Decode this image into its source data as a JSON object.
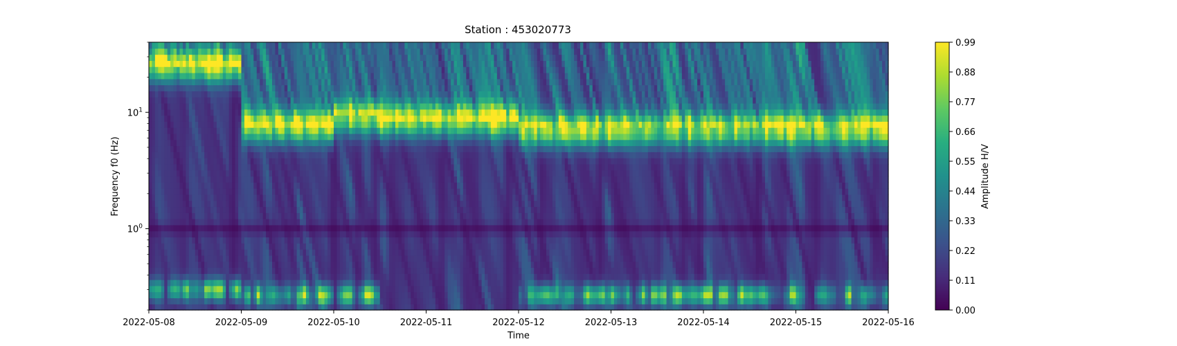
{
  "chart_data": {
    "type": "heatmap",
    "title": "Station : 453020773",
    "xlabel": "Time",
    "ylabel": "Frequency f0 (Hz)",
    "x_tick_labels": [
      "2022-05-08",
      "2022-05-09",
      "2022-05-10",
      "2022-05-11",
      "2022-05-12",
      "2022-05-13",
      "2022-05-14",
      "2022-05-15",
      "2022-05-16"
    ],
    "xlim": [
      "2022-05-08",
      "2022-05-16"
    ],
    "y_scale": "log",
    "ylim": [
      0.2,
      40
    ],
    "y_tick_labels": [
      {
        "value": 1,
        "base": "10",
        "exp": "0"
      },
      {
        "value": 10,
        "base": "10",
        "exp": "1"
      }
    ],
    "colormap": "viridis",
    "colorbar": {
      "label": "Amplitude H/V",
      "range": [
        0,
        0.99
      ],
      "tick_labels": [
        "0.00",
        "0.11",
        "0.22",
        "0.33",
        "0.44",
        "0.55",
        "0.66",
        "0.77",
        "0.88",
        "0.99"
      ]
    },
    "grid": false,
    "time_bands": [
      {
        "start": "2022-05-08 00:00",
        "end": "2022-05-09 00:00",
        "f0_high": 25,
        "f0_low": 0.3
      },
      {
        "start": "2022-05-09 00:00",
        "end": "2022-05-10 00:00",
        "f0_high": 7.5,
        "f0_low": 0.27
      },
      {
        "start": "2022-05-10 00:00",
        "end": "2022-05-10 12:00",
        "f0_high": 9,
        "f0_low": 0.27
      },
      {
        "start": "2022-05-10 12:00",
        "end": "2022-05-12 00:00",
        "f0_high": 8.5,
        "f0_low": null
      },
      {
        "start": "2022-05-12 00:00",
        "end": "2022-05-15 08:00",
        "f0_high": 7,
        "f0_low": 0.27
      },
      {
        "start": "2022-05-15 08:00",
        "end": "2022-05-16 00:00",
        "f0_high": 7,
        "f0_low": 0.27
      }
    ]
  }
}
